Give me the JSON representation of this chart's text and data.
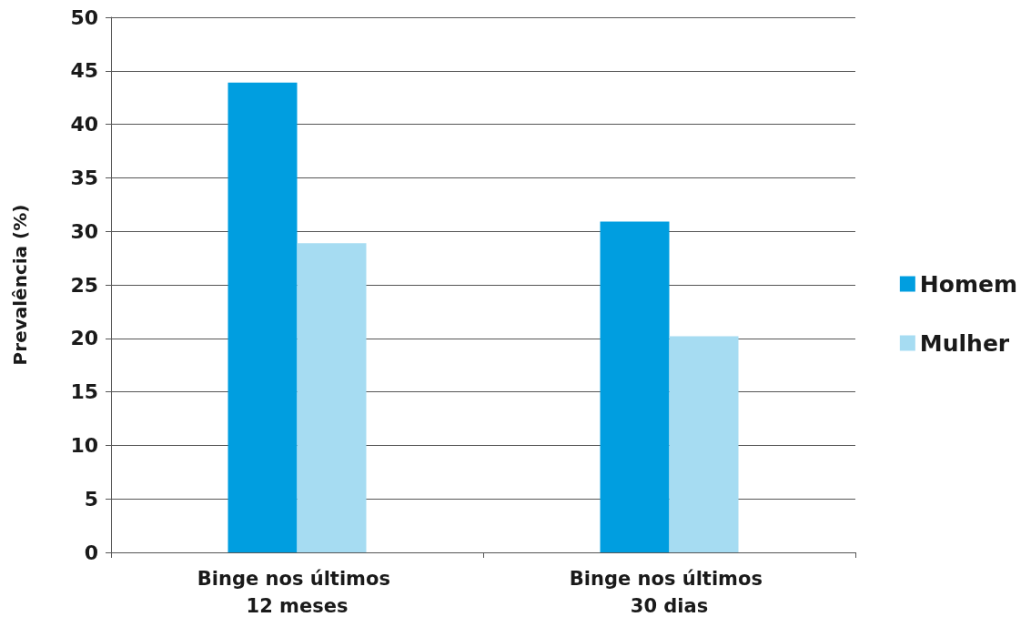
{
  "chart_data": {
    "type": "bar",
    "ylabel": "Prevalência (%)",
    "categories": [
      "Binge nos últimos 12 meses",
      "Binge nos últimos 30 dias"
    ],
    "series": [
      {
        "name": "Homem",
        "color": "#009ee0",
        "values": [
          43.9,
          30.9
        ]
      },
      {
        "name": "Mulher",
        "color": "#a6dcf2",
        "values": [
          28.9,
          20.2
        ]
      }
    ],
    "ylim": [
      0,
      50
    ],
    "yticks": [
      0,
      5,
      10,
      15,
      20,
      25,
      30,
      35,
      40,
      45,
      50
    ],
    "grid": "y",
    "legend": "right"
  }
}
